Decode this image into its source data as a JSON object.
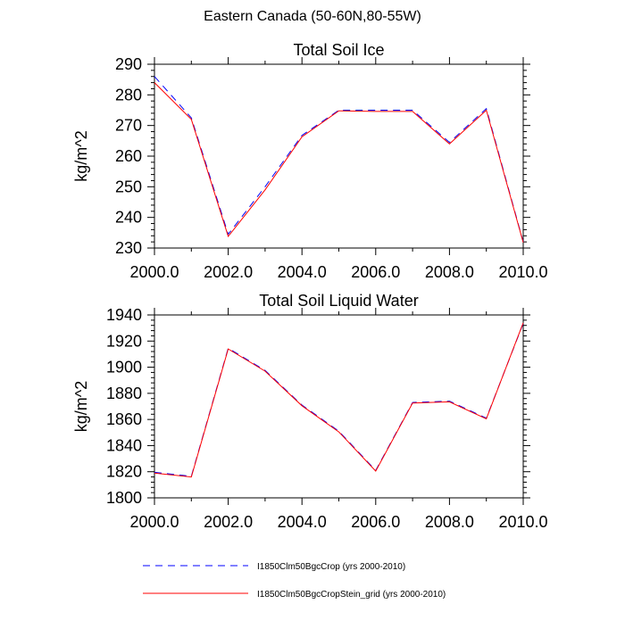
{
  "figure": {
    "supertitle": "Eastern Canada (50-60N,80-55W)"
  },
  "legend": {
    "placement": "bottom",
    "entries": [
      {
        "label": "I1850Clm50BgcCrop (yrs 2000-2010)",
        "color": "#0000ff",
        "style": "dashed"
      },
      {
        "label": "I1850Clm50BgcCropStein_grid (yrs 2000-2010)",
        "color": "#ff0000",
        "style": "solid"
      }
    ]
  },
  "chart_data": [
    {
      "type": "line",
      "title": "Total Soil Ice",
      "ylabel": "kg/m^2",
      "xlabel": "",
      "xlim": [
        2000,
        2010
      ],
      "ylim": [
        230,
        290
      ],
      "xticks": [
        "2000.0",
        "2002.0",
        "2004.0",
        "2006.0",
        "2008.0",
        "2010.0"
      ],
      "xtick_values": [
        2000,
        2002,
        2004,
        2006,
        2008,
        2010
      ],
      "yticks": [
        230,
        240,
        250,
        260,
        270,
        280,
        290
      ],
      "grid": false,
      "x": [
        2000,
        2001,
        2002,
        2003,
        2004,
        2005,
        2006,
        2007,
        2008,
        2009,
        2010
      ],
      "series": [
        {
          "values": [
            286.0,
            272.5,
            234.5,
            250.0,
            266.8,
            275.0,
            275.0,
            275.0,
            264.5,
            275.5,
            232.0
          ],
          "color": "#0000ff",
          "style": "dashed"
        },
        {
          "values": [
            284.0,
            272.0,
            233.8,
            249.0,
            266.3,
            274.8,
            274.6,
            274.6,
            264.0,
            275.0,
            231.8
          ],
          "color": "#ff0000",
          "style": "solid"
        }
      ]
    },
    {
      "type": "line",
      "title": "Total Soil Liquid Water",
      "ylabel": "kg/m^2",
      "xlabel": "",
      "xlim": [
        2000,
        2010
      ],
      "ylim": [
        1800,
        1940
      ],
      "xticks": [
        "2000.0",
        "2002.0",
        "2004.0",
        "2006.0",
        "2008.0",
        "2010.0"
      ],
      "xtick_values": [
        2000,
        2002,
        2004,
        2006,
        2008,
        2010
      ],
      "yticks": [
        1800,
        1820,
        1840,
        1860,
        1880,
        1900,
        1920,
        1940
      ],
      "grid": false,
      "x": [
        2000,
        2001,
        2002,
        2003,
        2004,
        2005,
        2006,
        2007,
        2008,
        2009,
        2010
      ],
      "series": [
        {
          "values": [
            1819.5,
            1816.5,
            1914.5,
            1897.5,
            1871.0,
            1851.0,
            1821.0,
            1873.0,
            1874.0,
            1861.0,
            1933.5
          ],
          "color": "#0000ff",
          "style": "dashed"
        },
        {
          "values": [
            1819.0,
            1816.0,
            1914.0,
            1897.0,
            1870.5,
            1850.5,
            1820.5,
            1872.5,
            1873.5,
            1860.5,
            1934.0
          ],
          "color": "#ff0000",
          "style": "solid"
        }
      ]
    }
  ]
}
